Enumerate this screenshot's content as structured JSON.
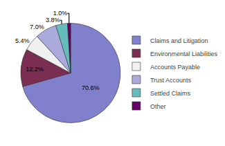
{
  "chart_data": {
    "type": "pie",
    "categories": [
      "Claims and Litigation",
      "Environmental Liabilities",
      "Accounts Payable",
      "Trust Accounts",
      "Settled Claims",
      "Other"
    ],
    "values": [
      70.6,
      12.2,
      5.4,
      7.0,
      3.8,
      1.0
    ],
    "value_labels": [
      "70.6%",
      "12.2%",
      "5.4%",
      "7.0%",
      "3.8%",
      "1.0%"
    ],
    "colors": [
      "#8080CC",
      "#7B2D52",
      "#F0F0F0",
      "#AAAADD",
      "#66BBBB",
      "#660066"
    ],
    "data_labels": true,
    "legend": "right"
  }
}
